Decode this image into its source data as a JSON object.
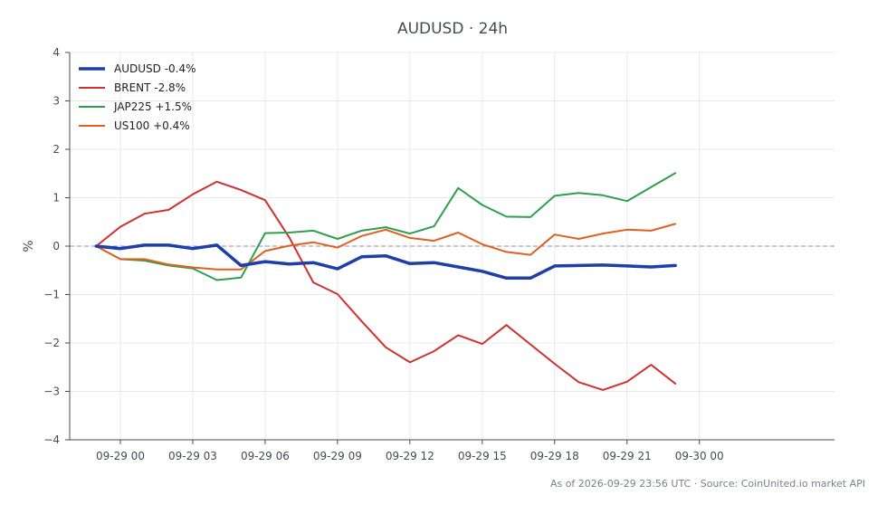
{
  "chart_data": {
    "type": "line",
    "title": "AUDUSD · 24h",
    "xlabel": "",
    "ylabel": "%",
    "ylim": [
      -4,
      4
    ],
    "yticks": [
      "−4",
      "−3",
      "−2",
      "−1",
      "0",
      "1",
      "2",
      "3",
      "4"
    ],
    "xlim": [
      -2.1,
      29.6
    ],
    "xticks": [
      {
        "label": "09-29 00",
        "x": 0
      },
      {
        "label": "09-29 03",
        "x": 3
      },
      {
        "label": "09-29 06",
        "x": 6
      },
      {
        "label": "09-29 09",
        "x": 9
      },
      {
        "label": "09-29 12",
        "x": 12
      },
      {
        "label": "09-29 15",
        "x": 15
      },
      {
        "label": "09-29 18",
        "x": 18
      },
      {
        "label": "09-29 21",
        "x": 21
      },
      {
        "label": "09-30 00",
        "x": 24
      }
    ],
    "x": [
      -1,
      0,
      1,
      2,
      3,
      4,
      5,
      6,
      7,
      8,
      9,
      10,
      11,
      12,
      13,
      14,
      15,
      16,
      17,
      18,
      19,
      20,
      21,
      22,
      23
    ],
    "grid": true,
    "legend_position": "top-left",
    "baseline": 0,
    "series": [
      {
        "name": "AUDUSD -0.4%",
        "color": "#1f3fa8",
        "width": 3.5,
        "values": [
          0,
          -0.05,
          0.02,
          0.02,
          -0.05,
          0.02,
          -0.4,
          -0.32,
          -0.37,
          -0.34,
          -0.47,
          -0.22,
          -0.2,
          -0.36,
          -0.34,
          -0.43,
          -0.52,
          -0.66,
          -0.66,
          -0.41,
          -0.4,
          -0.39,
          -0.41,
          -0.43,
          -0.4
        ]
      },
      {
        "name": "BRENT -2.8%",
        "color": "#d03030",
        "width": 2,
        "values": [
          0,
          0.4,
          0.67,
          0.75,
          1.07,
          1.33,
          1.16,
          0.95,
          0.18,
          -0.75,
          -0.99,
          -1.55,
          -2.09,
          -2.4,
          -2.17,
          -1.84,
          -2.02,
          -1.63,
          -2.03,
          -2.43,
          -2.81,
          -2.97,
          -2.8,
          -2.45,
          -2.84
        ]
      },
      {
        "name": "JAP225 +1.5%",
        "color": "#2ca04c",
        "width": 2,
        "values": [
          0,
          -0.27,
          -0.3,
          -0.4,
          -0.46,
          -0.7,
          -0.65,
          0.27,
          0.28,
          0.32,
          0.15,
          0.32,
          0.39,
          0.26,
          0.41,
          1.2,
          0.85,
          0.61,
          0.6,
          1.04,
          1.1,
          1.05,
          0.93,
          1.22,
          1.51
        ]
      },
      {
        "name": "US100 +0.4%",
        "color": "#e06020",
        "width": 2,
        "values": [
          0,
          -0.27,
          -0.27,
          -0.38,
          -0.44,
          -0.48,
          -0.48,
          -0.1,
          0.01,
          0.08,
          -0.03,
          0.21,
          0.34,
          0.17,
          0.11,
          0.28,
          0.04,
          -0.12,
          -0.18,
          0.24,
          0.15,
          0.26,
          0.34,
          0.32,
          0.46
        ]
      }
    ],
    "footer": "As of 2026-09-29 23:56 UTC · Source: CoinUnited.io market API"
  }
}
